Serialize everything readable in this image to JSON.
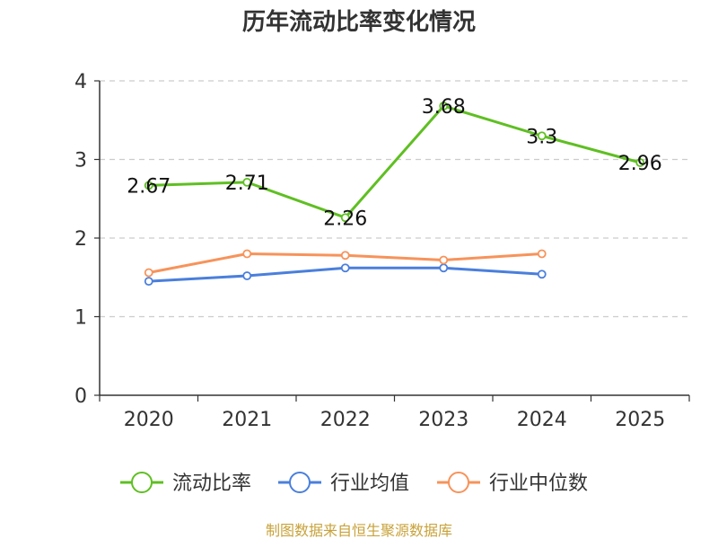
{
  "chart_data": {
    "type": "line",
    "title": "历年流动比率变化情况",
    "categories": [
      "2020",
      "2021",
      "2022",
      "2023",
      "2024",
      "2025"
    ],
    "ylim": [
      0,
      4
    ],
    "yticks": [
      "0",
      "1",
      "2",
      "3",
      "4"
    ],
    "grid": true,
    "legend_position": "bottom",
    "series": [
      {
        "name": "流动比率",
        "color": "#5fbf22",
        "values": [
          2.67,
          2.71,
          2.26,
          3.68,
          3.3,
          2.96
        ],
        "labels": [
          "2.67",
          "2.71",
          "2.26",
          "3.68",
          "3.3",
          "2.96"
        ]
      },
      {
        "name": "行业均值",
        "color": "#4a7fdc",
        "values": [
          1.45,
          1.52,
          1.62,
          1.62,
          1.54,
          null
        ]
      },
      {
        "name": "行业中位数",
        "color": "#f7935a",
        "values": [
          1.56,
          1.8,
          1.78,
          1.72,
          1.8,
          null
        ]
      }
    ]
  },
  "source_text": "制图数据来自恒生聚源数据库"
}
